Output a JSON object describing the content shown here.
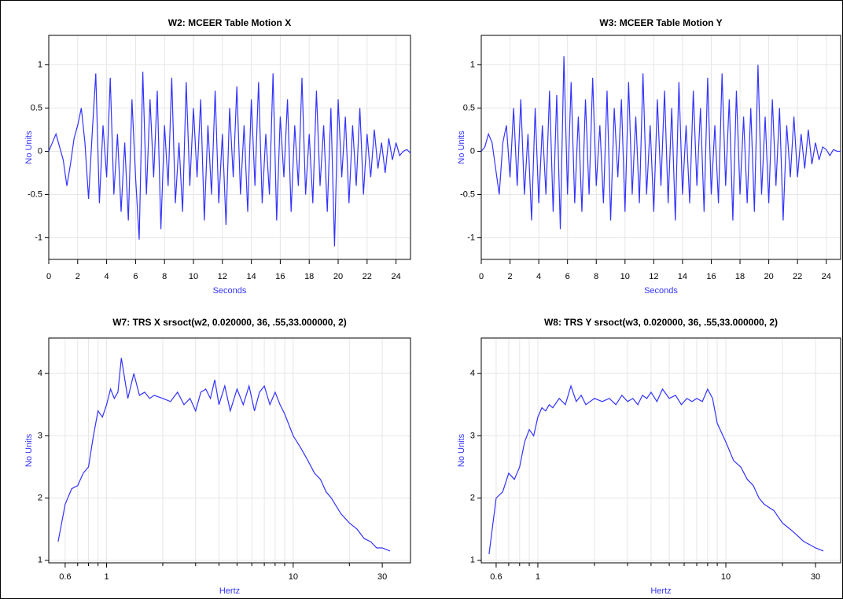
{
  "chart_data": [
    {
      "type": "line",
      "title": "W2: MCEER Table Motion X",
      "xlabel": "Seconds",
      "ylabel": "No Units",
      "color": "#3333ff",
      "grid": true,
      "x": [
        0,
        0.25,
        0.5,
        0.75,
        1,
        1.25,
        1.5,
        1.75,
        2,
        2.25,
        2.5,
        2.75,
        3,
        3.25,
        3.5,
        3.75,
        4,
        4.25,
        4.5,
        4.75,
        5,
        5.25,
        5.5,
        5.75,
        6,
        6.25,
        6.5,
        6.75,
        7,
        7.25,
        7.5,
        7.75,
        8,
        8.25,
        8.5,
        8.75,
        9,
        9.25,
        9.5,
        9.75,
        10,
        10.25,
        10.5,
        10.75,
        11,
        11.25,
        11.5,
        11.75,
        12,
        12.25,
        12.5,
        12.75,
        13,
        13.25,
        13.5,
        13.75,
        14,
        14.25,
        14.5,
        14.75,
        15,
        15.25,
        15.5,
        15.75,
        16,
        16.25,
        16.5,
        16.75,
        17,
        17.25,
        17.5,
        17.75,
        18,
        18.25,
        18.5,
        18.75,
        19,
        19.25,
        19.5,
        19.75,
        20,
        20.25,
        20.5,
        20.75,
        21,
        21.25,
        21.5,
        21.75,
        22,
        22.25,
        22.5,
        22.75,
        23,
        23.25,
        23.5,
        23.75,
        24,
        24.25,
        24.5,
        24.75,
        25
      ],
      "values": [
        0,
        0.1,
        0.2,
        0.05,
        -0.1,
        -0.4,
        -0.15,
        0.15,
        0.3,
        0.5,
        0.1,
        -0.55,
        0.2,
        0.9,
        -0.6,
        0.3,
        -0.3,
        0.85,
        -0.5,
        0.2,
        -0.7,
        0.1,
        -0.8,
        0.6,
        -0.3,
        -1.02,
        0.92,
        -0.5,
        0.6,
        -0.3,
        0.7,
        -0.9,
        0.3,
        -0.4,
        0.85,
        -0.6,
        0.1,
        -0.7,
        0.8,
        -0.4,
        0.5,
        -0.3,
        0.6,
        -0.8,
        0.3,
        -0.5,
        0.7,
        -0.6,
        0.2,
        -0.85,
        0.5,
        -0.3,
        0.75,
        -0.5,
        0.3,
        -0.7,
        0.6,
        -0.4,
        0.8,
        -0.6,
        0.2,
        -0.5,
        0.9,
        -0.8,
        0.4,
        -0.3,
        0.6,
        -0.7,
        0.3,
        -0.4,
        0.85,
        -0.5,
        0.2,
        -0.6,
        0.7,
        -0.4,
        0.3,
        -0.7,
        0.5,
        -1.1,
        0.6,
        -0.3,
        0.4,
        -0.6,
        0.3,
        -0.4,
        0.5,
        -0.5,
        0.2,
        -0.3,
        0.25,
        -0.2,
        0.1,
        -0.25,
        0.15,
        -0.1,
        0.1,
        -0.05,
        0,
        0.02,
        -0.02
      ],
      "xlim": [
        0,
        25
      ],
      "xticks": [
        0,
        2,
        4,
        6,
        8,
        10,
        12,
        14,
        16,
        18,
        20,
        22,
        24
      ],
      "ylim": [
        -1.25,
        1.34
      ],
      "yticks": [
        -1,
        -0.5,
        0,
        0.5,
        1
      ]
    },
    {
      "type": "line",
      "title": "W3: MCEER Table Motion Y",
      "xlabel": "Seconds",
      "ylabel": "No Units",
      "color": "#3333ff",
      "grid": true,
      "x": [
        0,
        0.25,
        0.5,
        0.75,
        1,
        1.25,
        1.5,
        1.75,
        2,
        2.25,
        2.5,
        2.75,
        3,
        3.25,
        3.5,
        3.75,
        4,
        4.25,
        4.5,
        4.75,
        5,
        5.25,
        5.5,
        5.75,
        6,
        6.25,
        6.5,
        6.75,
        7,
        7.25,
        7.5,
        7.75,
        8,
        8.25,
        8.5,
        8.75,
        9,
        9.25,
        9.5,
        9.75,
        10,
        10.25,
        10.5,
        10.75,
        11,
        11.25,
        11.5,
        11.75,
        12,
        12.25,
        12.5,
        12.75,
        13,
        13.25,
        13.5,
        13.75,
        14,
        14.25,
        14.5,
        14.75,
        15,
        15.25,
        15.5,
        15.75,
        16,
        16.25,
        16.5,
        16.75,
        17,
        17.25,
        17.5,
        17.75,
        18,
        18.25,
        18.5,
        18.75,
        19,
        19.25,
        19.5,
        19.75,
        20,
        20.25,
        20.5,
        20.75,
        21,
        21.25,
        21.5,
        21.75,
        22,
        22.25,
        22.5,
        22.75,
        23,
        23.25,
        23.5,
        23.75,
        24,
        24.25,
        24.5,
        24.75,
        25
      ],
      "values": [
        0,
        0.05,
        0.2,
        0.1,
        -0.2,
        -0.5,
        0.1,
        0.3,
        -0.3,
        0.5,
        -0.4,
        0.6,
        -0.5,
        0.2,
        -0.8,
        0.5,
        -0.6,
        0.3,
        -0.5,
        0.7,
        -0.7,
        0.65,
        -0.9,
        1.1,
        -0.5,
        0.8,
        -0.6,
        0.4,
        -0.7,
        0.6,
        -0.5,
        0.85,
        -0.4,
        0.3,
        -0.6,
        0.7,
        -0.8,
        0.5,
        -0.3,
        0.6,
        -0.7,
        0.8,
        -0.5,
        0.4,
        -0.6,
        0.9,
        -0.5,
        0.3,
        -0.7,
        0.6,
        -0.4,
        0.7,
        -0.6,
        0.5,
        -0.8,
        0.8,
        -0.5,
        0.3,
        -0.6,
        0.7,
        -0.4,
        0.5,
        -0.7,
        0.85,
        -0.5,
        0.3,
        -0.6,
        0.9,
        -0.4,
        0.6,
        -0.8,
        0.7,
        -0.5,
        0.4,
        -0.6,
        0.5,
        -0.7,
        1.0,
        -0.5,
        0.4,
        -0.6,
        0.6,
        -0.4,
        0.5,
        -0.8,
        0.3,
        -0.3,
        0.4,
        -0.3,
        0.2,
        -0.2,
        0.25,
        -0.15,
        0.1,
        -0.1,
        0.05,
        0.02,
        -0.05,
        0.02,
        0,
        0
      ],
      "xlim": [
        0,
        25
      ],
      "xticks": [
        0,
        2,
        4,
        6,
        8,
        10,
        12,
        14,
        16,
        18,
        20,
        22,
        24
      ],
      "ylim": [
        -1.25,
        1.34
      ],
      "yticks": [
        -1,
        -0.5,
        0,
        0.5,
        1
      ]
    },
    {
      "type": "line",
      "title": "W7: TRS X srsoct(w2, 0.020000, 36, .55,33.000000, 2)",
      "xlabel": "Hertz",
      "ylabel": "No Units",
      "color": "#3333ff",
      "grid": true,
      "xscale": "log",
      "x": [
        0.55,
        0.6,
        0.65,
        0.7,
        0.75,
        0.8,
        0.85,
        0.9,
        0.95,
        1,
        1.05,
        1.1,
        1.15,
        1.2,
        1.3,
        1.4,
        1.5,
        1.6,
        1.7,
        1.8,
        2,
        2.2,
        2.4,
        2.6,
        2.8,
        3,
        3.2,
        3.4,
        3.6,
        3.8,
        4,
        4.3,
        4.6,
        5,
        5.4,
        5.8,
        6.2,
        6.6,
        7,
        7.5,
        8,
        8.5,
        9,
        10,
        11,
        12,
        13,
        14,
        15,
        16,
        18,
        20,
        22,
        24,
        26,
        28,
        30,
        33
      ],
      "values": [
        1.3,
        1.9,
        2.15,
        2.2,
        2.4,
        2.5,
        3.0,
        3.4,
        3.3,
        3.5,
        3.75,
        3.6,
        3.7,
        4.25,
        3.6,
        4.0,
        3.65,
        3.7,
        3.6,
        3.65,
        3.6,
        3.55,
        3.7,
        3.5,
        3.6,
        3.4,
        3.7,
        3.75,
        3.6,
        3.9,
        3.5,
        3.8,
        3.4,
        3.75,
        3.5,
        3.8,
        3.4,
        3.7,
        3.8,
        3.5,
        3.7,
        3.5,
        3.35,
        3.0,
        2.8,
        2.6,
        2.4,
        2.3,
        2.1,
        2.0,
        1.75,
        1.6,
        1.5,
        1.35,
        1.3,
        1.2,
        1.2,
        1.15
      ],
      "xlim": [
        0.49,
        42.5
      ],
      "xticks": [
        0.6,
        1,
        10,
        30
      ],
      "xminorticks": [
        0.7,
        0.8,
        0.9,
        2,
        3,
        4,
        5,
        6,
        7,
        8,
        9,
        20
      ],
      "ylim": [
        0.96,
        4.57
      ],
      "yticks": [
        1,
        2,
        3,
        4
      ]
    },
    {
      "type": "line",
      "title": "W8: TRS Y  srsoct(w3, 0.020000, 36, .55,33.000000, 2)",
      "xlabel": "Hertz",
      "ylabel": "No Units",
      "color": "#3333ff",
      "grid": true,
      "xscale": "log",
      "x": [
        0.55,
        0.6,
        0.65,
        0.7,
        0.75,
        0.8,
        0.85,
        0.9,
        0.95,
        1,
        1.05,
        1.1,
        1.15,
        1.2,
        1.3,
        1.4,
        1.5,
        1.6,
        1.7,
        1.8,
        2,
        2.2,
        2.4,
        2.6,
        2.8,
        3,
        3.2,
        3.4,
        3.6,
        3.8,
        4,
        4.3,
        4.6,
        5,
        5.4,
        5.8,
        6.2,
        6.6,
        7,
        7.5,
        8,
        8.5,
        9,
        10,
        11,
        12,
        13,
        14,
        15,
        16,
        18,
        20,
        22,
        24,
        26,
        28,
        30,
        33
      ],
      "values": [
        1.1,
        2.0,
        2.1,
        2.4,
        2.3,
        2.5,
        2.9,
        3.1,
        3.0,
        3.3,
        3.45,
        3.4,
        3.5,
        3.45,
        3.6,
        3.5,
        3.8,
        3.55,
        3.65,
        3.5,
        3.6,
        3.55,
        3.6,
        3.5,
        3.65,
        3.55,
        3.6,
        3.5,
        3.65,
        3.6,
        3.7,
        3.55,
        3.75,
        3.6,
        3.65,
        3.5,
        3.6,
        3.55,
        3.6,
        3.55,
        3.75,
        3.6,
        3.2,
        2.9,
        2.6,
        2.5,
        2.3,
        2.2,
        2.0,
        1.9,
        1.8,
        1.6,
        1.5,
        1.4,
        1.3,
        1.25,
        1.2,
        1.15
      ],
      "xlim": [
        0.5,
        40.8
      ],
      "xticks": [
        0.6,
        1,
        10,
        30
      ],
      "xminorticks": [
        0.7,
        0.8,
        0.9,
        2,
        3,
        4,
        5,
        6,
        7,
        8,
        9,
        20
      ],
      "ylim": [
        0.96,
        4.57
      ],
      "yticks": [
        1,
        2,
        3,
        4
      ]
    }
  ]
}
